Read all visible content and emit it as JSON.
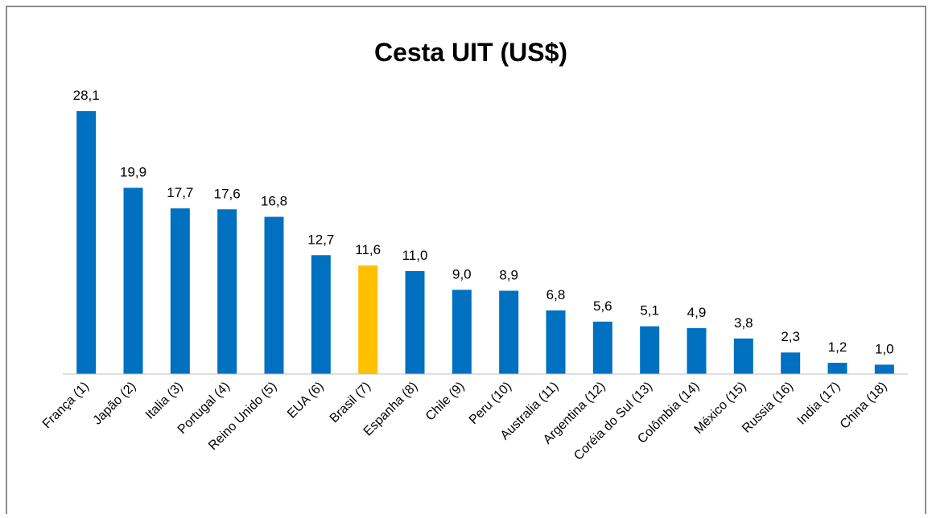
{
  "chart_data": {
    "type": "bar",
    "title": "Cesta UIT (US$)",
    "categories": [
      "França (1)",
      "Japão (2)",
      "Italia (3)",
      "Portugal (4)",
      "Reino Unido (5)",
      "EUA (6)",
      "Brasil (7)",
      "Espanha (8)",
      "Chile (9)",
      "Peru (10)",
      "Australia (11)",
      "Argentina (12)",
      "Coréia do Sul (13)",
      "Colômbia (14)",
      "México (15)",
      "Russia (16)",
      "India (17)",
      "China (18)"
    ],
    "values": [
      28.1,
      19.9,
      17.7,
      17.6,
      16.8,
      12.7,
      11.6,
      11.0,
      9.0,
      8.9,
      6.8,
      5.6,
      5.1,
      4.9,
      3.8,
      2.3,
      1.2,
      1.0
    ],
    "value_labels": [
      "28,1",
      "19,9",
      "17,7",
      "17,6",
      "16,8",
      "12,7",
      "11,6",
      "11,0",
      "9,0",
      "8,9",
      "6,8",
      "5,6",
      "5,1",
      "4,9",
      "3,8",
      "2,3",
      "1,2",
      "1,0"
    ],
    "colors": [
      "#0070c0",
      "#0070c0",
      "#0070c0",
      "#0070c0",
      "#0070c0",
      "#0070c0",
      "#ffc000",
      "#0070c0",
      "#0070c0",
      "#0070c0",
      "#0070c0",
      "#0070c0",
      "#0070c0",
      "#0070c0",
      "#0070c0",
      "#0070c0",
      "#0070c0",
      "#0070c0"
    ],
    "ylim": [
      0,
      30
    ]
  }
}
